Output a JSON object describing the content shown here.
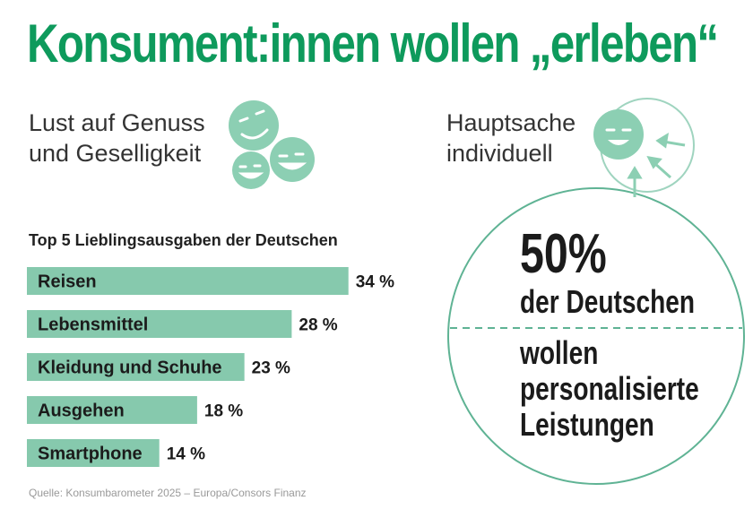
{
  "title": "Konsument:innen wollen „erleben“",
  "left_heading": [
    "Lust auf Genuss",
    "und Geselligkeit"
  ],
  "right_heading": [
    "Hauptsache",
    "individuell"
  ],
  "stat": {
    "value": "50%",
    "line1": "der Deutschen",
    "line2": [
      "wollen",
      "personalisierte",
      "Leistungen"
    ]
  },
  "source": "Quelle: Konsumbarometer 2025 – Europa/Consors Finanz",
  "colors": {
    "title": "#0e9a5c",
    "bar": "#86c9ad",
    "circle": "#5fb394"
  },
  "chart_data": {
    "type": "bar",
    "orientation": "horizontal",
    "title": "Top 5 Lieblingsausgaben der Deutschen",
    "categories": [
      "Reisen",
      "Lebensmittel",
      "Kleidung und Schuhe",
      "Ausgehen",
      "Smartphone"
    ],
    "values": [
      34,
      28,
      23,
      18,
      14
    ],
    "labels": [
      "34 %",
      "28 %",
      "23 %",
      "18 %",
      "14 %"
    ],
    "unit": "%"
  }
}
